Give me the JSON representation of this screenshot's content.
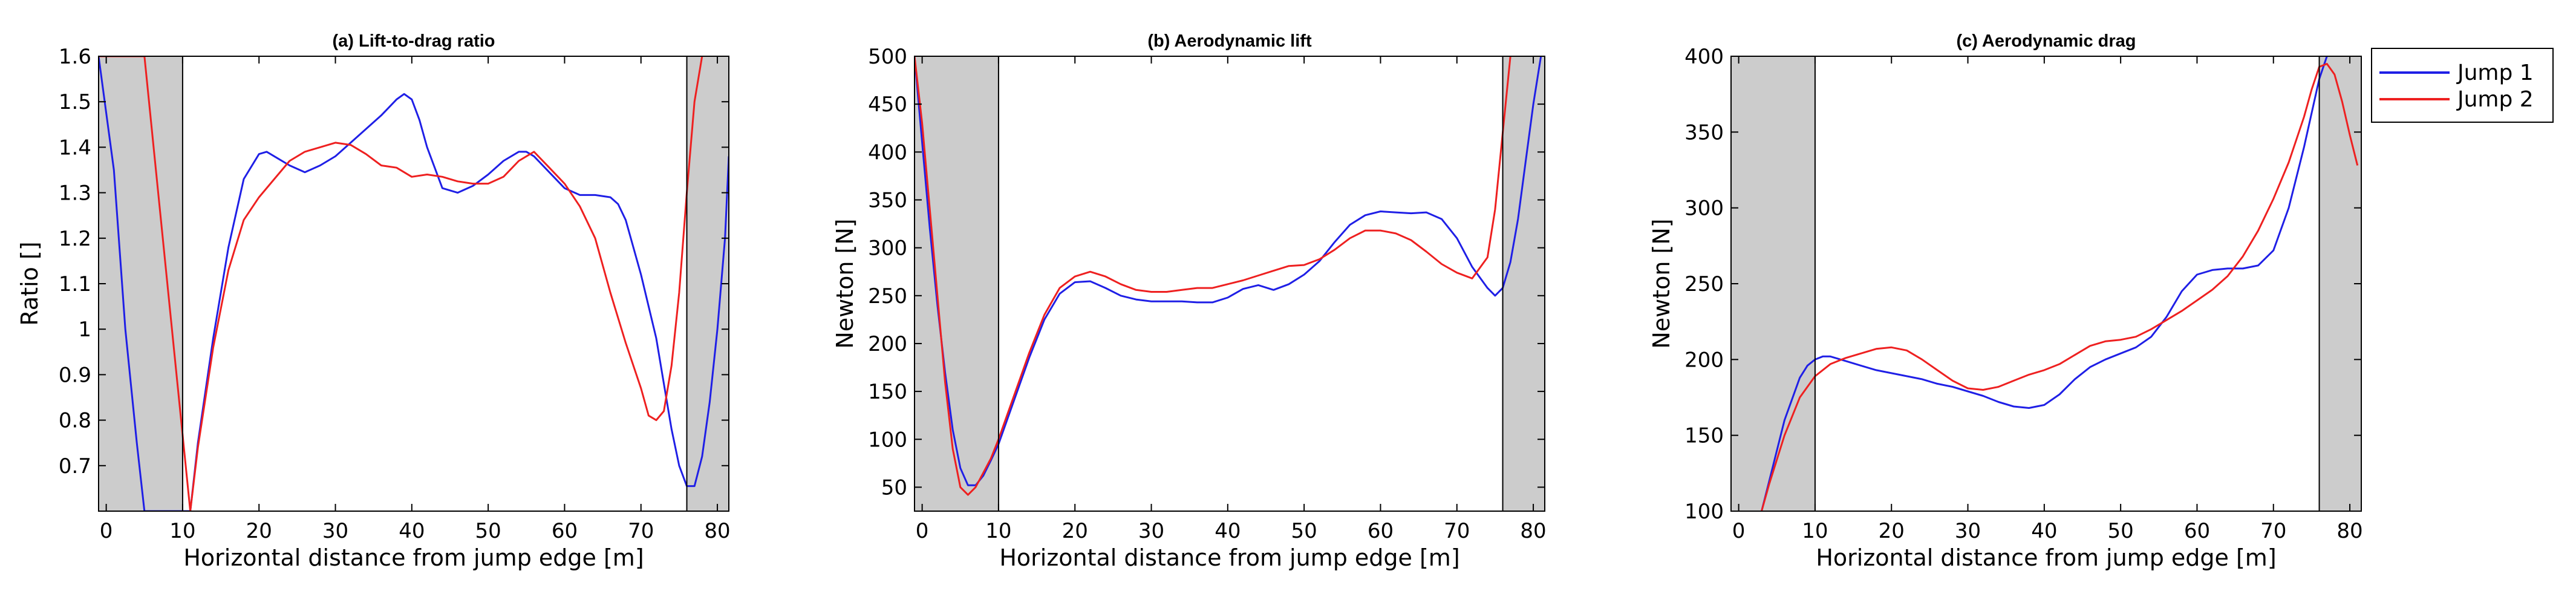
{
  "colors": {
    "jump1": "#1f1fe6",
    "jump2": "#ee2020",
    "shade": "#cccccc"
  },
  "legend": {
    "position": "right",
    "items": [
      "Jump 1",
      "Jump 2"
    ]
  },
  "chart_data": [
    {
      "type": "line",
      "title": "(a) Lift-to-drag ratio",
      "xlabel": "Horizontal distance from jump edge [m]",
      "ylabel": "Ratio []",
      "xlim": [
        -1,
        81.5
      ],
      "ylim": [
        0.6,
        1.6
      ],
      "xticks": [
        0,
        10,
        20,
        30,
        40,
        50,
        60,
        70,
        80
      ],
      "yticks": [
        0.7,
        0.8,
        0.9,
        1,
        1.1,
        1.2,
        1.3,
        1.4,
        1.5,
        1.6
      ],
      "shaded_regions": [
        [
          -1,
          10
        ],
        [
          76,
          81.5
        ]
      ],
      "series": [
        {
          "name": "Jump 1",
          "x": [
            -1,
            1,
            2.5,
            4,
            5,
            11,
            12,
            14,
            16,
            18,
            20,
            21,
            22,
            24,
            26,
            28,
            30,
            32,
            34,
            36,
            38,
            39,
            40,
            41,
            42,
            44,
            46,
            48,
            50,
            52,
            54,
            55,
            56,
            58,
            60,
            62,
            64,
            66,
            67,
            68,
            70,
            72,
            73,
            74,
            75,
            76,
            77,
            78,
            79,
            80,
            81,
            81.5
          ],
          "y": [
            1.6,
            1.35,
            1.0,
            0.75,
            0.6,
            0.6,
            0.75,
            0.98,
            1.18,
            1.33,
            1.385,
            1.39,
            1.38,
            1.36,
            1.345,
            1.36,
            1.38,
            1.41,
            1.44,
            1.47,
            1.505,
            1.517,
            1.505,
            1.46,
            1.4,
            1.31,
            1.3,
            1.315,
            1.34,
            1.37,
            1.39,
            1.39,
            1.38,
            1.345,
            1.31,
            1.295,
            1.295,
            1.29,
            1.275,
            1.24,
            1.12,
            0.98,
            0.88,
            0.78,
            0.7,
            0.655,
            0.655,
            0.72,
            0.84,
            1.0,
            1.2,
            1.38
          ]
        },
        {
          "name": "Jump 2",
          "x": [
            -1,
            1,
            2,
            3,
            4,
            5,
            11,
            12,
            14,
            16,
            18,
            20,
            22,
            24,
            26,
            28,
            30,
            32,
            34,
            36,
            38,
            40,
            42,
            44,
            46,
            48,
            50,
            52,
            54,
            56,
            58,
            60,
            62,
            64,
            66,
            68,
            70,
            71,
            72,
            73,
            74,
            75,
            76,
            77,
            78
          ],
          "y": [
            1.6,
            1.6,
            1.6,
            1.6,
            1.6,
            1.6,
            0.6,
            0.74,
            0.96,
            1.13,
            1.24,
            1.29,
            1.33,
            1.37,
            1.39,
            1.4,
            1.41,
            1.405,
            1.385,
            1.36,
            1.355,
            1.335,
            1.34,
            1.335,
            1.325,
            1.32,
            1.32,
            1.335,
            1.37,
            1.39,
            1.355,
            1.32,
            1.27,
            1.2,
            1.08,
            0.97,
            0.87,
            0.81,
            0.8,
            0.82,
            0.92,
            1.08,
            1.3,
            1.5,
            1.6
          ]
        }
      ]
    },
    {
      "type": "line",
      "title": "(b) Aerodynamic lift",
      "xlabel": "Horizontal distance from jump edge [m]",
      "ylabel": "Newton [N]",
      "xlim": [
        -1,
        81.5
      ],
      "ylim": [
        25,
        500
      ],
      "xticks": [
        0,
        10,
        20,
        30,
        40,
        50,
        60,
        70,
        80
      ],
      "yticks": [
        50,
        100,
        150,
        200,
        250,
        300,
        350,
        400,
        450,
        500
      ],
      "shaded_regions": [
        [
          -1,
          10
        ],
        [
          76,
          81.5
        ]
      ],
      "series": [
        {
          "name": "Jump 1",
          "x": [
            -1,
            0,
            1,
            2,
            3,
            4,
            5,
            6,
            7,
            8,
            9,
            10,
            12,
            14,
            16,
            18,
            20,
            22,
            24,
            26,
            28,
            30,
            32,
            34,
            36,
            38,
            40,
            42,
            44,
            46,
            48,
            50,
            52,
            54,
            56,
            58,
            60,
            62,
            64,
            66,
            68,
            70,
            72,
            74,
            75,
            76,
            77,
            78,
            79,
            80,
            81
          ],
          "y": [
            500,
            410,
            320,
            240,
            170,
            110,
            70,
            52,
            52,
            62,
            78,
            95,
            140,
            185,
            225,
            252,
            264,
            265,
            258,
            250,
            246,
            244,
            244,
            244,
            243,
            243,
            248,
            257,
            261,
            256,
            262,
            272,
            286,
            306,
            324,
            334,
            338,
            337,
            336,
            337,
            330,
            310,
            280,
            258,
            250,
            258,
            285,
            330,
            390,
            450,
            500
          ]
        },
        {
          "name": "Jump 2",
          "x": [
            -1,
            0,
            1,
            2,
            3,
            4,
            5,
            6,
            7,
            8,
            9,
            10,
            12,
            14,
            16,
            18,
            20,
            22,
            24,
            26,
            28,
            30,
            32,
            34,
            36,
            38,
            40,
            42,
            44,
            46,
            48,
            50,
            52,
            54,
            56,
            58,
            60,
            62,
            64,
            66,
            68,
            70,
            72,
            74,
            75,
            76,
            77
          ],
          "y": [
            500,
            430,
            340,
            250,
            160,
            90,
            50,
            42,
            50,
            65,
            80,
            100,
            145,
            190,
            230,
            258,
            270,
            275,
            270,
            262,
            256,
            254,
            254,
            256,
            258,
            258,
            262,
            266,
            271,
            276,
            281,
            282,
            288,
            298,
            310,
            318,
            318,
            315,
            308,
            296,
            283,
            274,
            268,
            290,
            340,
            420,
            500
          ]
        }
      ]
    },
    {
      "type": "line",
      "title": "(c) Aerodynamic drag",
      "xlabel": "Horizontal distance from jump edge [m]",
      "ylabel": "Newton [N]",
      "xlim": [
        -1,
        81.5
      ],
      "ylim": [
        100,
        400
      ],
      "xticks": [
        0,
        10,
        20,
        30,
        40,
        50,
        60,
        70,
        80
      ],
      "yticks": [
        100,
        150,
        200,
        250,
        300,
        350,
        400
      ],
      "shaded_regions": [
        [
          -1,
          10
        ],
        [
          76,
          81.5
        ]
      ],
      "series": [
        {
          "name": "Jump 1",
          "x": [
            3,
            4,
            6,
            8,
            9,
            10,
            11,
            12,
            14,
            16,
            18,
            20,
            22,
            24,
            26,
            28,
            30,
            32,
            34,
            36,
            38,
            40,
            42,
            44,
            46,
            48,
            50,
            52,
            54,
            56,
            58,
            60,
            62,
            64,
            66,
            68,
            70,
            72,
            74,
            76,
            77
          ],
          "y": [
            100,
            120,
            160,
            188,
            196,
            200,
            202,
            202,
            199,
            196,
            193,
            191,
            189,
            187,
            184,
            182,
            179,
            176,
            172,
            169,
            168,
            170,
            177,
            187,
            195,
            200,
            204,
            208,
            215,
            228,
            245,
            256,
            259,
            260,
            260,
            262,
            272,
            300,
            340,
            385,
            400
          ]
        },
        {
          "name": "Jump 2",
          "x": [
            3,
            4,
            6,
            8,
            10,
            12,
            14,
            16,
            18,
            20,
            22,
            24,
            26,
            28,
            30,
            32,
            34,
            36,
            38,
            40,
            42,
            44,
            46,
            48,
            50,
            52,
            54,
            56,
            58,
            60,
            62,
            64,
            66,
            68,
            70,
            72,
            74,
            75,
            76,
            77,
            78,
            79,
            80,
            81
          ],
          "y": [
            100,
            118,
            150,
            175,
            189,
            197,
            201,
            204,
            207,
            208,
            206,
            200,
            193,
            186,
            181,
            180,
            182,
            186,
            190,
            193,
            197,
            203,
            209,
            212,
            213,
            215,
            220,
            226,
            232,
            239,
            246,
            255,
            268,
            285,
            306,
            330,
            360,
            378,
            393,
            395,
            388,
            370,
            348,
            328
          ]
        }
      ]
    }
  ]
}
